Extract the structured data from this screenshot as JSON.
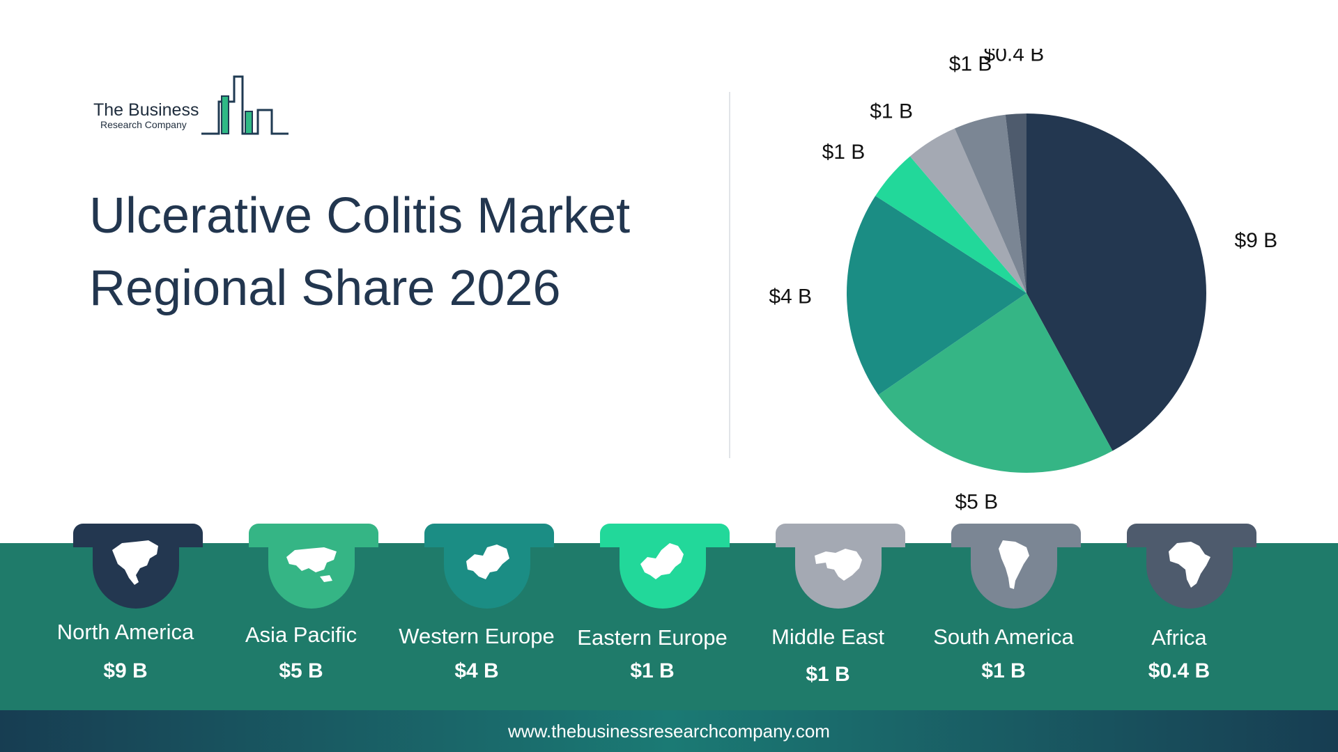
{
  "brand": {
    "line1": "The Business",
    "line2": "Research Company"
  },
  "title": {
    "line1": "Ulcerative Colitis Market",
    "line2": "Regional Share 2026"
  },
  "colors": {
    "band": "#1f7b6a",
    "north_america": "#233750",
    "asia_pacific": "#35b585",
    "western_europe": "#1b8d84",
    "eastern_europe": "#22d89a",
    "middle_east": "#a4a9b3",
    "south_america": "#7b8694",
    "africa": "#4e5b6d"
  },
  "chart_data": {
    "type": "pie",
    "title": "Ulcerative Colitis Market Regional Share 2026",
    "unit": "$ B",
    "slices": [
      {
        "name": "North America",
        "value": 9,
        "label": "$9 B",
        "color": "#233750"
      },
      {
        "name": "Asia Pacific",
        "value": 5,
        "label": "$5 B",
        "color": "#35b585"
      },
      {
        "name": "Western Europe",
        "value": 4,
        "label": "$4 B",
        "color": "#1b8d84"
      },
      {
        "name": "Eastern Europe",
        "value": 1,
        "label": "$1 B",
        "color": "#22d89a"
      },
      {
        "name": "Middle East",
        "value": 1,
        "label": "$1 B",
        "color": "#a4a9b3"
      },
      {
        "name": "South America",
        "value": 1,
        "label": "$1 B",
        "color": "#7b8694"
      },
      {
        "name": "Africa",
        "value": 0.4,
        "label": "$0.4 B",
        "color": "#4e5b6d"
      }
    ]
  },
  "regions": [
    {
      "name": "North America",
      "value": "$9 B",
      "icon": "north-america-map-icon"
    },
    {
      "name": "Asia Pacific",
      "value": "$5 B",
      "icon": "asia-pacific-map-icon"
    },
    {
      "name": "Western Europe",
      "value": "$4 B",
      "icon": "western-europe-map-icon"
    },
    {
      "name": "Eastern Europe",
      "value": "$1 B",
      "icon": "eastern-europe-map-icon"
    },
    {
      "name": "Middle East",
      "value": "$1 B",
      "icon": "middle-east-map-icon"
    },
    {
      "name": "South America",
      "value": "$1 B",
      "icon": "south-america-map-icon"
    },
    {
      "name": "Africa",
      "value": "$0.4 B",
      "icon": "africa-map-icon"
    }
  ],
  "footer": {
    "url": "www.thebusinessresearchcompany.com"
  }
}
